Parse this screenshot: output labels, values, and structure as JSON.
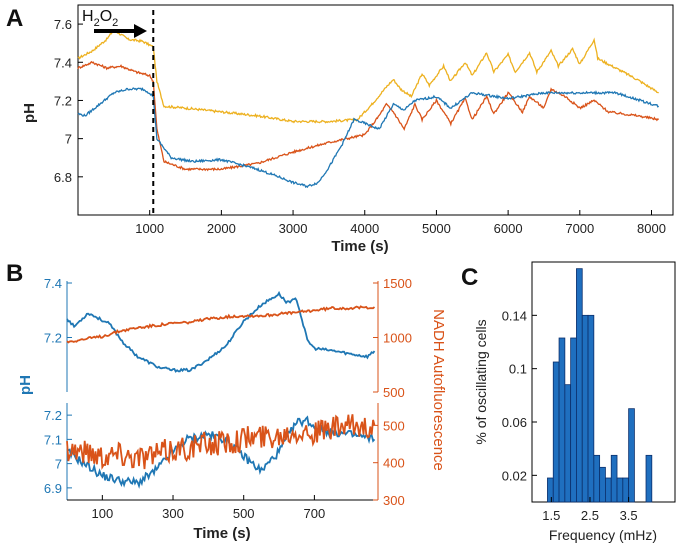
{
  "panels": {
    "a": "A",
    "b": "B",
    "c": "C"
  },
  "colors": {
    "blue": "#1f77b4",
    "orange": "#d95319",
    "yellow": "#edb120",
    "bar": "#1f6fbf"
  },
  "chart_data": [
    {
      "type": "line",
      "panel": "A",
      "xlabel": "Time (s)",
      "ylabel": "pH",
      "xlim": [
        0,
        8300
      ],
      "ylim": [
        6.6,
        7.7
      ],
      "xticks": [
        1000,
        2000,
        3000,
        4000,
        5000,
        6000,
        7000,
        8000
      ],
      "xtick_labels": [
        "1000",
        "2000",
        "3000",
        "4000",
        "5000",
        "6000",
        "7000",
        "8000"
      ],
      "yticks": [
        6.8,
        7,
        7.2,
        7.4,
        7.6
      ],
      "ytick_labels": [
        "6.8",
        "7",
        "7.2",
        "7.4",
        "7.6"
      ],
      "annotation": {
        "label_base": "H",
        "label_sub1": "2",
        "label_mid": "O",
        "label_sub2": "2",
        "time": 1050
      },
      "series": [
        {
          "name": "yellow",
          "x": [
            0,
            200,
            400,
            500,
            700,
            900,
            1000,
            1050,
            1100,
            1200,
            1500,
            2000,
            2500,
            3000,
            3500,
            3900,
            4100,
            4300,
            4400,
            4500,
            4650,
            4800,
            4900,
            5100,
            5200,
            5400,
            5500,
            5700,
            5800,
            6000,
            6100,
            6300,
            6400,
            6600,
            6700,
            6900,
            7000,
            7200,
            7250,
            7500,
            7800,
            8100
          ],
          "y": [
            7.42,
            7.46,
            7.52,
            7.57,
            7.52,
            7.51,
            7.49,
            7.48,
            7.3,
            7.17,
            7.16,
            7.14,
            7.12,
            7.09,
            7.09,
            7.1,
            7.18,
            7.27,
            7.31,
            7.26,
            7.22,
            7.34,
            7.28,
            7.38,
            7.3,
            7.4,
            7.33,
            7.45,
            7.35,
            7.44,
            7.35,
            7.45,
            7.35,
            7.46,
            7.38,
            7.47,
            7.39,
            7.52,
            7.42,
            7.37,
            7.31,
            7.24
          ]
        },
        {
          "name": "orange",
          "x": [
            0,
            200,
            400,
            600,
            800,
            1000,
            1050,
            1100,
            1200,
            1500,
            2000,
            2500,
            3000,
            3500,
            4000,
            4200,
            4300,
            4400,
            4550,
            4700,
            4800,
            5000,
            5200,
            5400,
            5500,
            5700,
            5800,
            6000,
            6200,
            6300,
            6500,
            6600,
            6800,
            7000,
            7200,
            7400,
            7600,
            7800,
            8100
          ],
          "y": [
            7.37,
            7.4,
            7.37,
            7.38,
            7.35,
            7.33,
            7.3,
            7.05,
            6.88,
            6.84,
            6.84,
            6.87,
            6.93,
            6.98,
            7.02,
            7.12,
            7.18,
            7.14,
            7.05,
            7.18,
            7.1,
            7.2,
            7.08,
            7.21,
            7.1,
            7.22,
            7.13,
            7.24,
            7.14,
            7.22,
            7.16,
            7.26,
            7.22,
            7.16,
            7.2,
            7.14,
            7.13,
            7.12,
            7.1
          ]
        },
        {
          "name": "blue",
          "x": [
            0,
            100,
            300,
            500,
            700,
            900,
            1000,
            1050,
            1100,
            1300,
            1600,
            2000,
            2500,
            2800,
            3000,
            3200,
            3350,
            3500,
            3700,
            3850,
            4000,
            4200,
            4400,
            4550,
            4700,
            5000,
            5200,
            5500,
            6000,
            6500,
            7000,
            7500,
            8100
          ],
          "y": [
            7.13,
            7.12,
            7.18,
            7.24,
            7.26,
            7.26,
            7.24,
            7.22,
            7.0,
            6.9,
            6.88,
            6.89,
            6.84,
            6.8,
            6.77,
            6.75,
            6.77,
            6.85,
            6.98,
            7.1,
            7.08,
            7.05,
            7.18,
            7.15,
            7.2,
            7.22,
            7.16,
            7.24,
            7.21,
            7.24,
            7.24,
            7.24,
            7.17
          ]
        }
      ]
    },
    {
      "type": "line",
      "panel": "B-top",
      "ylabel_left": "pH",
      "ylabel_right": "NADH Autofluorescence",
      "xlim": [
        0,
        880
      ],
      "ylim_left": [
        7.0,
        7.4
      ],
      "ylim_right": [
        500,
        1500
      ],
      "yticks_left": [
        7.2,
        7.4
      ],
      "ytick_labels_left": [
        "7.2",
        "7.4"
      ],
      "yticks_right": [
        500,
        1000,
        1500
      ],
      "ytick_labels_right": [
        "500",
        "1000",
        "1500"
      ],
      "series": [
        {
          "name": "pH",
          "axis": "left",
          "x": [
            0,
            20,
            60,
            120,
            160,
            200,
            260,
            300,
            350,
            400,
            450,
            500,
            550,
            600,
            620,
            650,
            680,
            700,
            760,
            800,
            850,
            870
          ],
          "y": [
            7.27,
            7.24,
            7.29,
            7.25,
            7.18,
            7.13,
            7.09,
            7.08,
            7.08,
            7.12,
            7.17,
            7.26,
            7.32,
            7.36,
            7.33,
            7.34,
            7.19,
            7.16,
            7.15,
            7.14,
            7.13,
            7.15
          ]
        },
        {
          "name": "NADH",
          "axis": "right",
          "x": [
            0,
            50,
            100,
            150,
            200,
            250,
            300,
            350,
            400,
            450,
            500,
            550,
            600,
            650,
            700,
            750,
            800,
            870
          ],
          "y": [
            960,
            985,
            1010,
            1060,
            1090,
            1110,
            1130,
            1140,
            1170,
            1190,
            1200,
            1200,
            1215,
            1230,
            1250,
            1270,
            1270,
            1280
          ]
        }
      ]
    },
    {
      "type": "line",
      "panel": "B-bottom",
      "xlabel": "Time (s)",
      "xlim": [
        0,
        880
      ],
      "ylim_left": [
        6.85,
        7.25
      ],
      "ylim_right": [
        300,
        560
      ],
      "xticks": [
        100,
        300,
        500,
        700
      ],
      "xtick_labels": [
        "100",
        "300",
        "500",
        "700"
      ],
      "yticks_left": [
        6.9,
        7,
        7.1,
        7.2
      ],
      "ytick_labels_left": [
        "6.9",
        "7",
        "7.1",
        "7.2"
      ],
      "yticks_right": [
        300,
        400,
        500
      ],
      "ytick_labels_right": [
        "300",
        "400",
        "500"
      ],
      "series": [
        {
          "name": "pH",
          "axis": "left",
          "x": [
            0,
            50,
            100,
            150,
            200,
            250,
            300,
            340,
            400,
            450,
            500,
            550,
            600,
            650,
            680,
            700,
            750,
            800,
            870
          ],
          "y": [
            7.05,
            7.0,
            6.95,
            6.93,
            6.92,
            6.97,
            7.05,
            7.1,
            7.12,
            7.1,
            7.03,
            6.97,
            7.05,
            7.17,
            7.18,
            7.15,
            7.13,
            7.12,
            7.1
          ]
        },
        {
          "name": "NADH",
          "axis": "right",
          "x": [
            0,
            50,
            100,
            150,
            200,
            250,
            300,
            350,
            400,
            450,
            500,
            550,
            600,
            650,
            700,
            750,
            800,
            870
          ],
          "y": [
            440,
            430,
            420,
            425,
            415,
            420,
            435,
            440,
            450,
            455,
            465,
            470,
            475,
            490,
            480,
            490,
            495,
            500
          ]
        }
      ]
    },
    {
      "type": "bar",
      "panel": "C",
      "title": "",
      "xlabel": "Frequency (mHz)",
      "ylabel": "% of oscillating cells",
      "xlim": [
        1.0,
        4.7
      ],
      "ylim": [
        0,
        0.18
      ],
      "xticks": [
        1.5,
        2.5,
        3.5
      ],
      "xtick_labels": [
        "1.5",
        "2.5",
        "3.5"
      ],
      "yticks": [
        0.02,
        0.06,
        0.1,
        0.14
      ],
      "ytick_labels": [
        "0.02",
        "0.06",
        "0.1",
        "0.14"
      ],
      "bin_edges": [
        1.4,
        1.55,
        1.7,
        1.85,
        2.0,
        2.15,
        2.3,
        2.45,
        2.6,
        2.75,
        2.9,
        3.05,
        3.2,
        3.35,
        3.5,
        3.65,
        3.8,
        3.95,
        4.1
      ],
      "values": [
        0.018,
        0.105,
        0.123,
        0.088,
        0.123,
        0.175,
        0.14,
        0.14,
        0.035,
        0.026,
        0.018,
        0.035,
        0.018,
        0.018,
        0.07,
        0.0,
        0.0,
        0.035
      ]
    }
  ]
}
